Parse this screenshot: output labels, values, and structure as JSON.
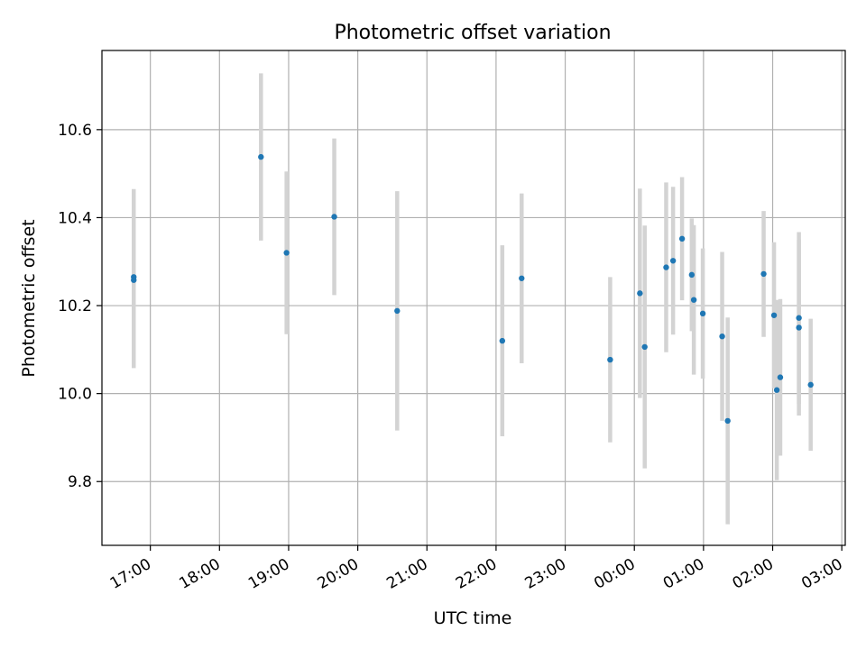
{
  "chart_data": {
    "type": "scatter",
    "title": "Photometric offset variation",
    "xlabel": "UTC time",
    "ylabel": "Photometric offset",
    "x_axis": {
      "unit": "hours after 17:00 UTC",
      "range": [
        -0.7,
        10.05
      ],
      "ticks": [
        {
          "value": 0,
          "label": "17:00"
        },
        {
          "value": 1,
          "label": "18:00"
        },
        {
          "value": 2,
          "label": "19:00"
        },
        {
          "value": 3,
          "label": "20:00"
        },
        {
          "value": 4,
          "label": "21:00"
        },
        {
          "value": 5,
          "label": "22:00"
        },
        {
          "value": 6,
          "label": "23:00"
        },
        {
          "value": 7,
          "label": "00:00"
        },
        {
          "value": 8,
          "label": "01:00"
        },
        {
          "value": 9,
          "label": "02:00"
        },
        {
          "value": 10,
          "label": "03:00"
        }
      ]
    },
    "y_axis": {
      "range": [
        9.655,
        10.78
      ],
      "ticks": [
        {
          "value": 9.8,
          "label": "9.8"
        },
        {
          "value": 10.0,
          "label": "10.0"
        },
        {
          "value": 10.2,
          "label": "10.2"
        },
        {
          "value": 10.4,
          "label": "10.4"
        },
        {
          "value": 10.6,
          "label": "10.6"
        }
      ]
    },
    "grid": true,
    "marker_color": "#1f77b4",
    "errorbar_color": "#d3d3d3",
    "points": [
      {
        "x": -0.24,
        "y": 10.265,
        "err": 0.2
      },
      {
        "x": -0.24,
        "y": 10.258,
        "err": 0.2
      },
      {
        "x": 1.6,
        "y": 10.538,
        "err": 0.19
      },
      {
        "x": 1.97,
        "y": 10.32,
        "err": 0.185
      },
      {
        "x": 2.66,
        "y": 10.402,
        "err": 0.178
      },
      {
        "x": 3.57,
        "y": 10.188,
        "err": 0.272
      },
      {
        "x": 5.09,
        "y": 10.12,
        "err": 0.217
      },
      {
        "x": 5.37,
        "y": 10.262,
        "err": 0.193
      },
      {
        "x": 6.65,
        "y": 10.077,
        "err": 0.188
      },
      {
        "x": 7.08,
        "y": 10.228,
        "err": 0.238
      },
      {
        "x": 7.15,
        "y": 10.106,
        "err": 0.276
      },
      {
        "x": 7.46,
        "y": 10.287,
        "err": 0.193
      },
      {
        "x": 7.56,
        "y": 10.302,
        "err": 0.168
      },
      {
        "x": 7.69,
        "y": 10.352,
        "err": 0.14
      },
      {
        "x": 7.83,
        "y": 10.27,
        "err": 0.128
      },
      {
        "x": 7.86,
        "y": 10.213,
        "err": 0.17
      },
      {
        "x": 7.99,
        "y": 10.182,
        "err": 0.148
      },
      {
        "x": 8.27,
        "y": 10.13,
        "err": 0.192
      },
      {
        "x": 8.35,
        "y": 9.938,
        "err": 0.235
      },
      {
        "x": 8.87,
        "y": 10.272,
        "err": 0.143
      },
      {
        "x": 9.02,
        "y": 10.178,
        "err": 0.166
      },
      {
        "x": 9.06,
        "y": 10.008,
        "err": 0.205
      },
      {
        "x": 9.11,
        "y": 10.037,
        "err": 0.178
      },
      {
        "x": 9.38,
        "y": 10.172,
        "err": 0.195
      },
      {
        "x": 9.38,
        "y": 10.15,
        "err": 0.2
      },
      {
        "x": 9.55,
        "y": 10.02,
        "err": 0.15
      }
    ]
  }
}
